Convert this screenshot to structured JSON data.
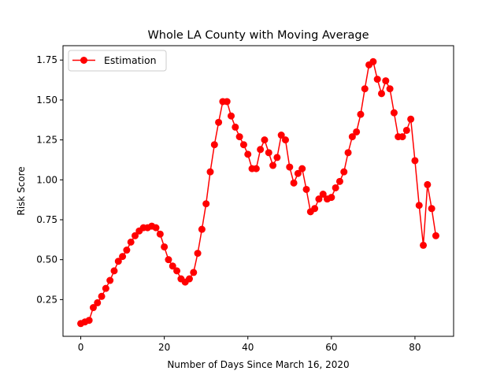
{
  "chart_data": {
    "type": "line",
    "title": "Whole LA County with Moving Average",
    "xlabel": "Number of Days Since March 16, 2020",
    "ylabel": "Risk Score",
    "xlim": [
      -4.25,
      89.25
    ],
    "ylim": [
      0.02,
      1.84
    ],
    "xticks": [
      0,
      20,
      40,
      60,
      80
    ],
    "xtick_labels": [
      "0",
      "20",
      "40",
      "60",
      "80"
    ],
    "yticks": [
      0.25,
      0.5,
      0.75,
      1.0,
      1.25,
      1.5,
      1.75
    ],
    "ytick_labels": [
      "0.25",
      "0.50",
      "0.75",
      "1.00",
      "1.25",
      "1.50",
      "1.75"
    ],
    "grid": false,
    "legend_position": "top-left",
    "series": [
      {
        "name": "Estimation",
        "color": "#ff0000",
        "marker": "circle",
        "x": [
          0,
          1,
          2,
          3,
          4,
          5,
          6,
          7,
          8,
          9,
          10,
          11,
          12,
          13,
          14,
          15,
          16,
          17,
          18,
          19,
          20,
          21,
          22,
          23,
          24,
          25,
          26,
          27,
          28,
          29,
          30,
          31,
          32,
          33,
          34,
          35,
          36,
          37,
          38,
          39,
          40,
          41,
          42,
          43,
          44,
          45,
          46,
          47,
          48,
          49,
          50,
          51,
          52,
          53,
          54,
          55,
          56,
          57,
          58,
          59,
          60,
          61,
          62,
          63,
          64,
          65,
          66,
          67,
          68,
          69,
          70,
          71,
          72,
          73,
          74,
          75,
          76,
          77,
          78,
          79,
          80,
          81,
          82,
          83,
          84,
          85
        ],
        "values": [
          0.1,
          0.11,
          0.12,
          0.2,
          0.23,
          0.27,
          0.32,
          0.37,
          0.43,
          0.49,
          0.52,
          0.56,
          0.61,
          0.65,
          0.68,
          0.7,
          0.7,
          0.71,
          0.7,
          0.66,
          0.58,
          0.5,
          0.46,
          0.43,
          0.38,
          0.36,
          0.38,
          0.42,
          0.54,
          0.69,
          0.85,
          1.05,
          1.22,
          1.36,
          1.49,
          1.49,
          1.4,
          1.33,
          1.27,
          1.22,
          1.16,
          1.07,
          1.07,
          1.19,
          1.25,
          1.17,
          1.09,
          1.14,
          1.28,
          1.25,
          1.08,
          0.98,
          1.04,
          1.07,
          0.94,
          0.8,
          0.82,
          0.88,
          0.91,
          0.88,
          0.89,
          0.95,
          0.99,
          1.05,
          1.17,
          1.27,
          1.3,
          1.41,
          1.57,
          1.72,
          1.74,
          1.63,
          1.54,
          1.62,
          1.57,
          1.42,
          1.27,
          1.27,
          1.31,
          1.38,
          1.12,
          0.84,
          0.59,
          0.97,
          0.82,
          0.65
        ]
      }
    ]
  }
}
